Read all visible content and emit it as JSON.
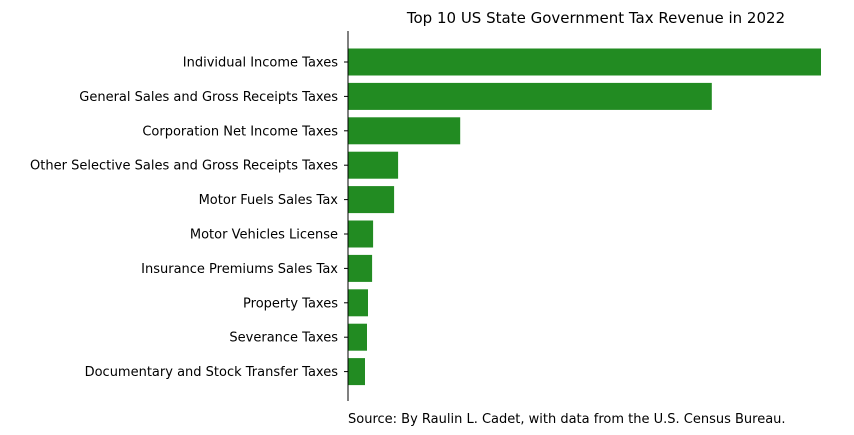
{
  "chart_data": {
    "type": "bar",
    "orientation": "horizontal",
    "title": "Top 10 US State Government Tax Revenue in 2022",
    "caption": "Source: By Raulin L. Cadet, with data from the U.S. Census Bureau.",
    "xlabel": "",
    "ylabel": "",
    "categories": [
      "Individual Income Taxes",
      "General Sales and Gross Receipts Taxes",
      "Corporation Net Income Taxes",
      "Other Selective Sales and Gross Receipts Taxes",
      "Motor Fuels Sales Tax",
      "Motor Vehicles License",
      "Insurance Premiums Sales Tax",
      "Property Taxes",
      "Severance Taxes",
      "Documentary and Stock Transfer Taxes"
    ],
    "values": [
      472,
      363,
      112,
      50,
      46,
      25,
      24,
      20,
      19,
      17
    ],
    "xlim": [
      0,
      472
    ],
    "x_axis_visible": false,
    "grid": false,
    "legend": "none",
    "bar_color": "#228b22"
  }
}
